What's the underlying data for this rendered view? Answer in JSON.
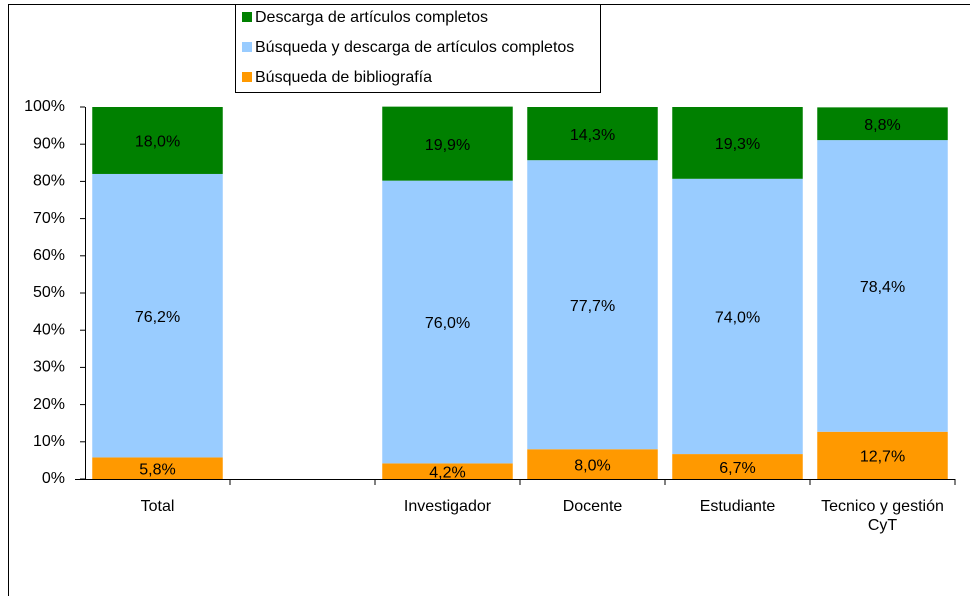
{
  "chart_data": {
    "type": "stacked_bar",
    "categories": [
      "Total",
      null,
      "Investigador",
      "Docente",
      "Estudiante",
      "Tecnico y gestión CyT"
    ],
    "series": [
      {
        "name": "Búsqueda de bibliografía",
        "color": "#ff9900",
        "values": [
          5.8,
          null,
          4.2,
          8.0,
          6.7,
          12.7
        ],
        "value_labels": [
          "5,8%",
          null,
          "4,2%",
          "8,0%",
          "6,7%",
          "12,7%"
        ]
      },
      {
        "name": "Búsqueda y descarga de artículos completos",
        "color": "#99ccff",
        "values": [
          76.2,
          null,
          76.0,
          77.7,
          74.0,
          78.4
        ],
        "value_labels": [
          "76,2%",
          null,
          "76,0%",
          "77,7%",
          "74,0%",
          "78,4%"
        ]
      },
      {
        "name": "Descarga de artículos completos",
        "color": "#008000",
        "values": [
          18.0,
          null,
          19.9,
          14.3,
          19.3,
          8.8
        ],
        "value_labels": [
          "18,0%",
          null,
          "19,9%",
          "14,3%",
          "19,3%",
          "8,8%"
        ]
      }
    ],
    "ylim": [
      0,
      100
    ],
    "yticks": [
      {
        "value": 0,
        "label": "0%"
      },
      {
        "value": 10,
        "label": "10%"
      },
      {
        "value": 20,
        "label": "20%"
      },
      {
        "value": 30,
        "label": "30%"
      },
      {
        "value": 40,
        "label": "40%"
      },
      {
        "value": 50,
        "label": "50%"
      },
      {
        "value": 60,
        "label": "60%"
      },
      {
        "value": 70,
        "label": "70%"
      },
      {
        "value": 80,
        "label": "80%"
      },
      {
        "value": 90,
        "label": "90%"
      },
      {
        "value": 100,
        "label": "100%"
      }
    ],
    "legend": "top"
  }
}
